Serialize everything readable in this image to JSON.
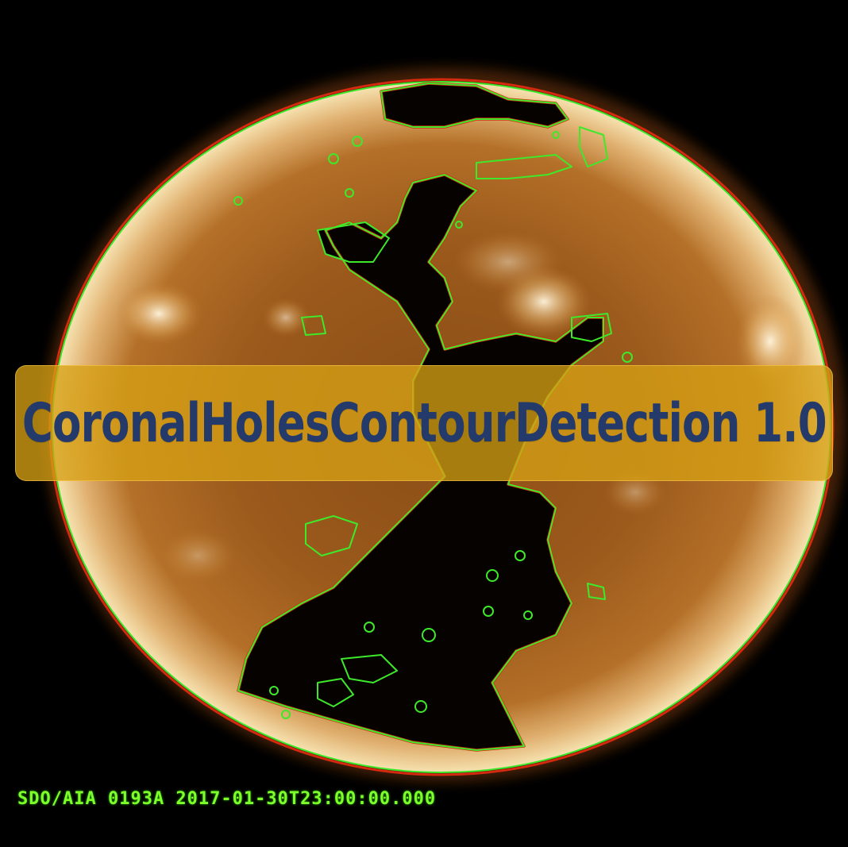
{
  "title": "CoronalHolesContourDetection 1.0",
  "caption": "SDO/AIA 0193A 2017-01-30T23:00:00.000",
  "colors": {
    "sun_core": "#b06a20",
    "sun_edge": "#f3d9a0",
    "contour_green": "#3ee82a",
    "contour_red": "#d62a10",
    "banner": "#d6a014",
    "title_text": "#233a6b",
    "caption_text": "#7cff2a"
  }
}
